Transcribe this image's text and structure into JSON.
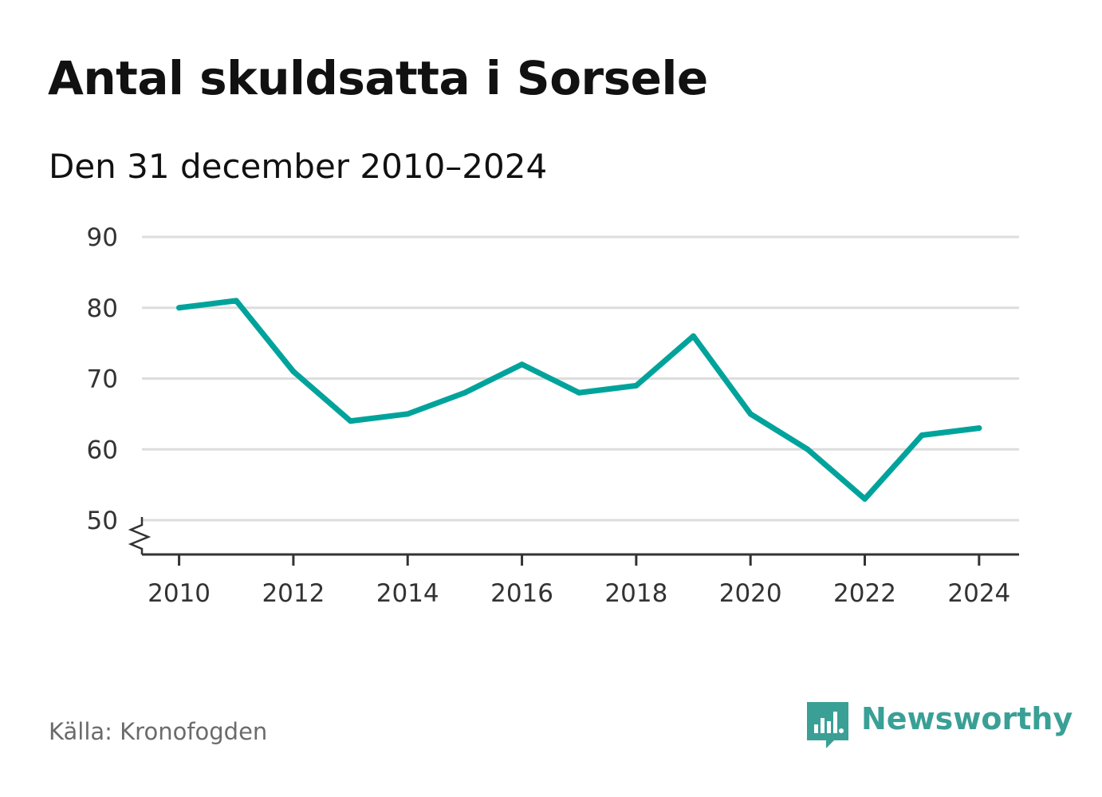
{
  "title": "Antal skuldsatta i Sorsele",
  "subtitle": "Den 31 december 2010–2024",
  "source": "Källa: Kronofogden",
  "brand": {
    "name": "Newsworthy",
    "icon": "newsworthy-logo-icon",
    "color": "#3aa096"
  },
  "colors": {
    "line": "#00a39b",
    "grid": "#dddddd",
    "axis": "#333333"
  },
  "chart_data": {
    "type": "line",
    "x": [
      2010,
      2011,
      2012,
      2013,
      2014,
      2015,
      2016,
      2017,
      2018,
      2019,
      2020,
      2021,
      2022,
      2023,
      2024
    ],
    "series": [
      {
        "values": [
          80,
          81,
          71,
          64,
          65,
          68,
          72,
          68,
          69,
          76,
          65,
          60,
          53,
          62,
          63
        ]
      }
    ],
    "xticks": [
      "2010",
      "2012",
      "2014",
      "2016",
      "2018",
      "2020",
      "2022",
      "2024"
    ],
    "yticks": [
      "50",
      "60",
      "70",
      "80",
      "90"
    ],
    "ylim": [
      45,
      90
    ],
    "xlim": [
      2009.35,
      2024.7
    ],
    "grid": true,
    "y_axis_break": true,
    "xlabel": "",
    "ylabel": "",
    "legend": "none"
  }
}
